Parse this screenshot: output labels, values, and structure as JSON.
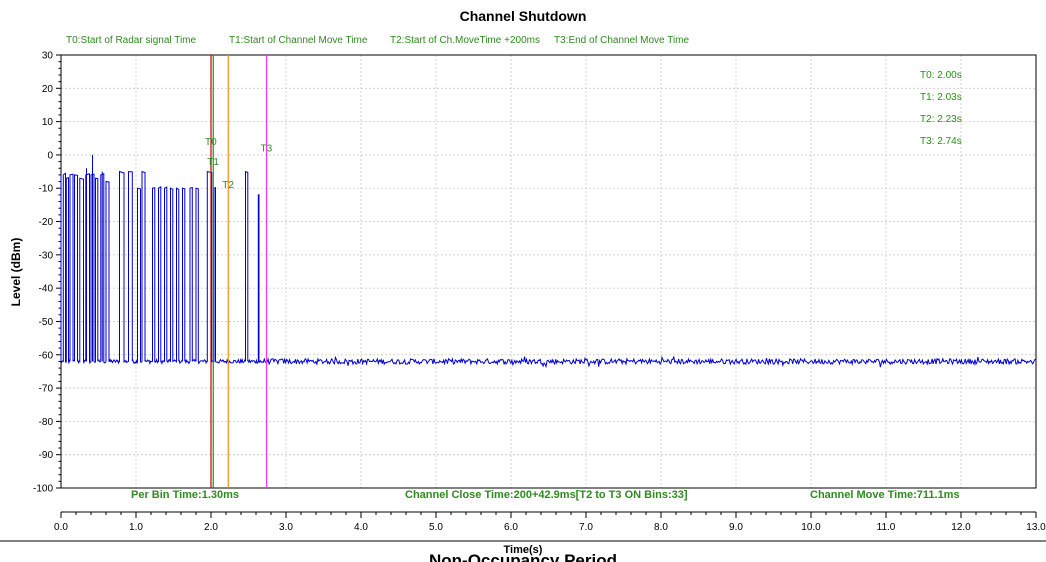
{
  "chart_data": {
    "type": "line",
    "title": "Channel Shutdown",
    "xlabel": "Time(s)",
    "ylabel": "Level (dBm)",
    "xlim": [
      0,
      13
    ],
    "ylim": [
      -100,
      30
    ],
    "x_ticks": [
      "0.0",
      "1.0",
      "2.0",
      "3.0",
      "4.0",
      "5.0",
      "6.0",
      "7.0",
      "8.0",
      "9.0",
      "10.0",
      "11.0",
      "12.0",
      "13.0"
    ],
    "y_ticks": [
      "30",
      "20",
      "10",
      "0",
      "-10",
      "-20",
      "-30",
      "-40",
      "-50",
      "-60",
      "-70",
      "-80",
      "-90",
      "-100"
    ],
    "grid": true,
    "series": [
      {
        "color": "#0000cc",
        "noise_floor": -62,
        "pulses": [
          {
            "start": 0.03,
            "end": 0.06,
            "level": -6
          },
          {
            "start": 0.07,
            "end": 0.1,
            "level": -7
          },
          {
            "start": 0.12,
            "end": 0.16,
            "level": -6
          },
          {
            "start": 0.18,
            "end": 0.22,
            "level": -6
          },
          {
            "start": 0.25,
            "end": 0.3,
            "level": -7
          },
          {
            "start": 0.33,
            "end": 0.38,
            "level": -6
          },
          {
            "start": 0.4,
            "end": 0.44,
            "level": -6
          },
          {
            "start": 0.46,
            "end": 0.49,
            "level": -7
          },
          {
            "start": 0.53,
            "end": 0.57,
            "level": -6
          },
          {
            "start": 0.6,
            "end": 0.64,
            "level": -8
          },
          {
            "start": 0.78,
            "end": 0.84,
            "level": -5
          },
          {
            "start": 0.9,
            "end": 0.95,
            "level": -5
          },
          {
            "start": 1.02,
            "end": 1.06,
            "level": -10
          },
          {
            "start": 1.08,
            "end": 1.12,
            "level": -5
          },
          {
            "start": 1.22,
            "end": 1.25,
            "level": -10
          },
          {
            "start": 1.3,
            "end": 1.33,
            "level": -10
          },
          {
            "start": 1.38,
            "end": 1.41,
            "level": -10
          },
          {
            "start": 1.46,
            "end": 1.49,
            "level": -10
          },
          {
            "start": 1.54,
            "end": 1.57,
            "level": -10
          },
          {
            "start": 1.62,
            "end": 1.65,
            "level": -10
          },
          {
            "start": 1.72,
            "end": 1.75,
            "level": -10
          },
          {
            "start": 1.8,
            "end": 1.83,
            "level": -10
          },
          {
            "start": 1.95,
            "end": 2.01,
            "level": -5
          },
          {
            "start": 2.04,
            "end": 2.06,
            "level": -10
          },
          {
            "start": 2.46,
            "end": 2.49,
            "level": -5
          },
          {
            "start": 2.63,
            "end": 2.64,
            "level": -12
          }
        ],
        "spikes": [
          {
            "x": 0.42,
            "y": 0
          },
          {
            "x": 0.55,
            "y": -5
          },
          {
            "x": 0.34,
            "y": -4
          }
        ]
      }
    ],
    "markers": [
      {
        "label": "T0",
        "x": 2.0,
        "color": "#cc0000",
        "label_y": 3
      },
      {
        "label": "T1",
        "x": 2.03,
        "color": "#2e8b1f",
        "label_y": -3
      },
      {
        "label": "T2",
        "x": 2.23,
        "color": "#ff8c00",
        "label_y": -10
      },
      {
        "label": "T3",
        "x": 2.74,
        "color": "#ff33ff",
        "label_y": 1
      }
    ],
    "legend_top": [
      "T0:Start of Radar signal Time",
      "T1:Start of Channel Move Time",
      "T2:Start of Ch.MoveTime +200ms",
      "T3:End of Channel Move Time"
    ],
    "readouts": [
      "T0: 2.00s",
      "T1: 2.03s",
      "T2: 2.23s",
      "T3: 2.74s"
    ],
    "bottom_annotations": [
      "Per Bin Time:1.30ms",
      "Channel Close Time:200+42.9ms[T2 to T3 ON Bins:33]",
      "Channel Move Time:711.1ms"
    ],
    "caption": "Non-Occupancy Period"
  }
}
